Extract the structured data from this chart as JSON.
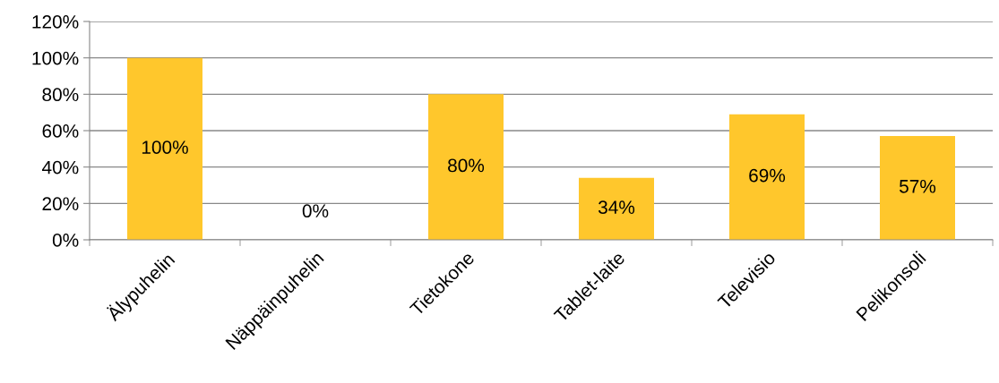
{
  "chart_data": {
    "type": "bar",
    "categories": [
      "Älypuhelin",
      "Näppäinpuhelin",
      "Tietokone",
      "Tablet-laite",
      "Televisio",
      "Pelikonsoli"
    ],
    "values": [
      100,
      0,
      80,
      34,
      69,
      57
    ],
    "value_labels": [
      "100%",
      "0%",
      "80%",
      "34%",
      "69%",
      "57%"
    ],
    "color": "#ffc72c",
    "ylim": [
      0,
      120
    ],
    "yticks": [
      {
        "value": 0,
        "label": "0%"
      },
      {
        "value": 20,
        "label": "20%"
      },
      {
        "value": 40,
        "label": "40%"
      },
      {
        "value": 60,
        "label": "60%"
      },
      {
        "value": 80,
        "label": "80%"
      },
      {
        "value": 100,
        "label": "100%"
      },
      {
        "value": 120,
        "label": "120%"
      }
    ],
    "grid": "y"
  }
}
